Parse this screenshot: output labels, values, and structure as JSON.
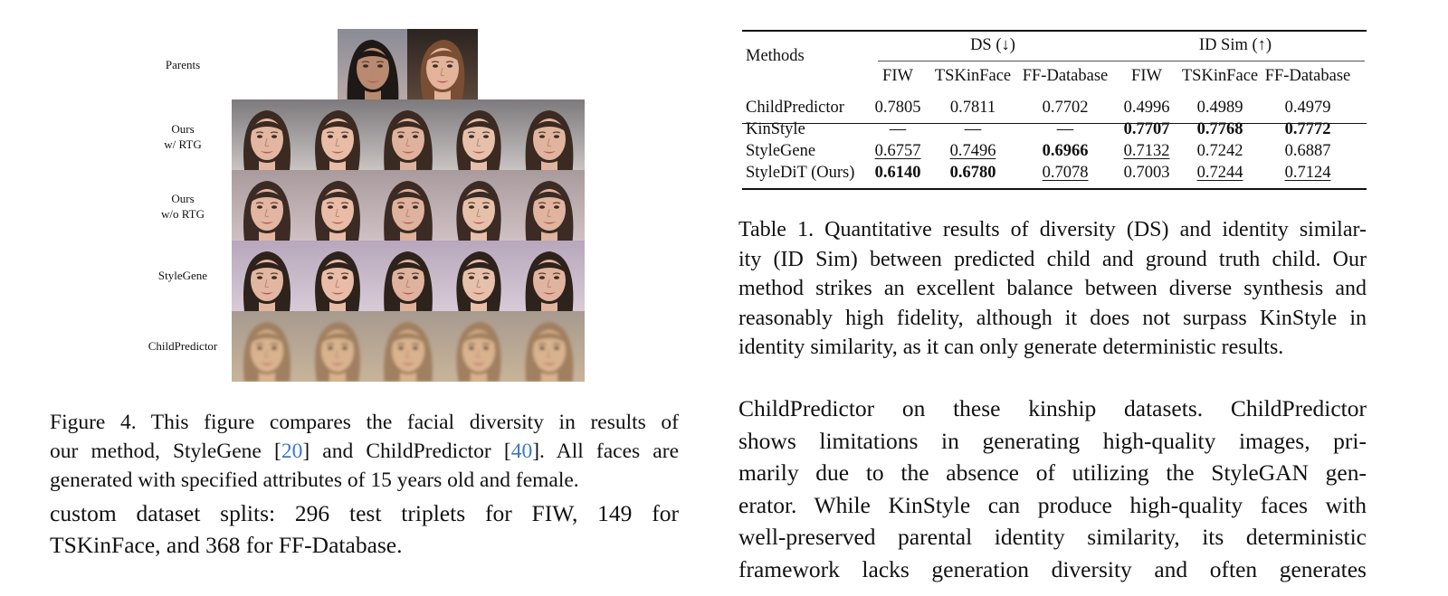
{
  "figure": {
    "row_labels": [
      {
        "id": "parents",
        "lines": [
          "Parents"
        ]
      },
      {
        "id": "ours-rtg",
        "lines": [
          "Ours",
          "w/ RTG"
        ]
      },
      {
        "id": "ours-no-rtg",
        "lines": [
          "Ours",
          "w/o RTG"
        ]
      },
      {
        "id": "stylegene",
        "lines": [
          "StyleGene"
        ]
      },
      {
        "id": "childpredictor",
        "lines": [
          "ChildPredictor"
        ]
      }
    ],
    "caption": {
      "line1": "Figure 4.  This figure compares the facial diversity in results of",
      "line2_a": "our method, StyleGene [",
      "cite1": "20",
      "line2_b": "] and ChildPredictor [",
      "cite2": "40",
      "line2_c": "]. All faces are",
      "line3": "generated with specified attributes of 15 years old and female."
    }
  },
  "body_left": {
    "line1": "custom dataset splits:  296 test triplets for FIW, 149 for",
    "line2": "TSKinFace, and 368 for FF-Database."
  },
  "table": {
    "header": {
      "methods": "Methods",
      "group1": "DS (↓)",
      "group2": "ID Sim (↑)",
      "subcols": [
        "FIW",
        "TSKinFace",
        "FF-Database",
        "FIW",
        "TSKinFace",
        "FF-Database"
      ]
    },
    "rows": [
      {
        "method": "ChildPredictor",
        "values": [
          "0.7805",
          "0.7811",
          "0.7702",
          "0.4996",
          "0.4989",
          "0.4979"
        ],
        "bold": [],
        "underline": []
      },
      {
        "method": "KinStyle",
        "values": [
          "—",
          "—",
          "—",
          "0.7707",
          "0.7768",
          "0.7772"
        ],
        "bold": [
          3,
          4,
          5
        ],
        "underline": []
      },
      {
        "method": "StyleGene",
        "values": [
          "0.6757",
          "0.7496",
          "0.6966",
          "0.7132",
          "0.7242",
          "0.6887"
        ],
        "bold": [
          2
        ],
        "underline": [
          0,
          1,
          3
        ]
      },
      {
        "method": "StyleDiT (Ours)",
        "values": [
          "0.6140",
          "0.6780",
          "0.7078",
          "0.7003",
          "0.7244",
          "0.7124"
        ],
        "bold": [
          0,
          1
        ],
        "underline": [
          2,
          4,
          5
        ]
      }
    ],
    "caption": {
      "line1": "Table 1. Quantitative results of diversity (DS) and identity similar-",
      "line2": "ity (ID Sim) between predicted child and ground truth child.  Our",
      "line3": "method strikes an excellent balance between diverse synthesis and",
      "line4": "reasonably high fidelity, although it does not surpass KinStyle in",
      "line5": "identity similarity, as it can only generate deterministic results."
    }
  },
  "body_right": {
    "line1": "ChildPredictor on these kinship datasets.  ChildPredictor",
    "line2": "shows limitations in generating high-quality images, pri-",
    "line3": "marily due to the absence of utilizing the StyleGAN gen-",
    "line4": "erator. While KinStyle can produce high-quality faces with",
    "line5": "well-preserved parental identity similarity, its deterministic",
    "line6": "framework lacks generation diversity and often generates"
  },
  "colors": {
    "citation": "#3a78c9",
    "text": "#111111"
  }
}
